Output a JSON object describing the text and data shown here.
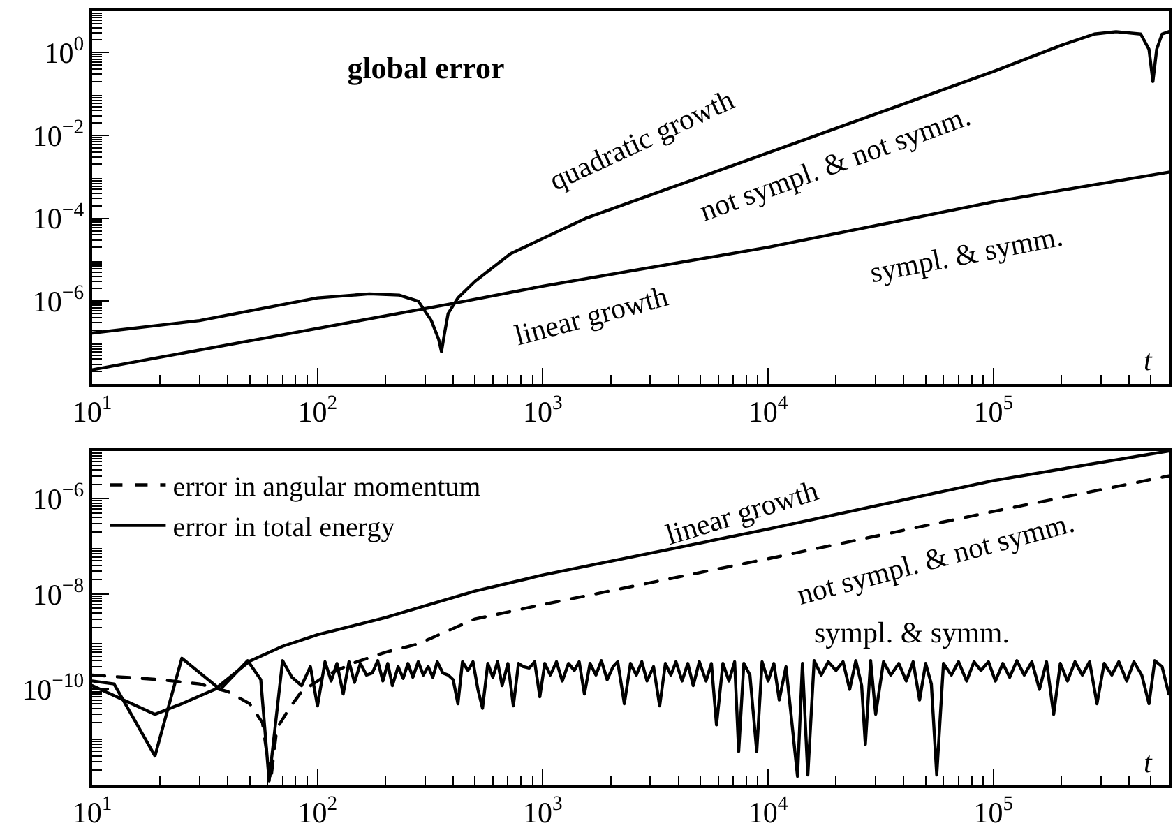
{
  "chart_data": [
    {
      "type": "line",
      "title": "global error",
      "xlabel": "t",
      "log": "xy",
      "grid": false,
      "marker": "none",
      "xlim": [
        10,
        600000
      ],
      "ylim": [
        1e-08,
        10
      ],
      "xticks": [
        {
          "value": 10,
          "label": "10$^{1}$"
        },
        {
          "value": 100,
          "label": "10$^{2}$"
        },
        {
          "value": 1000,
          "label": "10$^{3}$"
        },
        {
          "value": 10000,
          "label": "10$^{4}$"
        },
        {
          "value": 100000,
          "label": "10$^{5}$"
        }
      ],
      "yticks": [
        {
          "value": 1,
          "label": "10$^{0}$"
        },
        {
          "value": 0.01,
          "label": "10$^{−2}$"
        },
        {
          "value": 0.0001,
          "label": "10$^{−4}$"
        },
        {
          "value": 1e-06,
          "label": "10$^{−6}$"
        }
      ],
      "series": [
        {
          "color": "#000000",
          "line_style": "solid",
          "x": [
            10,
            30,
            100,
            170,
            230,
            280,
            320,
            345,
            355,
            365,
            380,
            420,
            500,
            720,
            1550,
            10000,
            100000,
            200000,
            280000,
            350000,
            450000,
            490000,
            510000,
            530000,
            560000,
            600000
          ],
          "values": [
            1.7e-07,
            3.4e-07,
            1.2e-06,
            1.5e-06,
            1.4e-06,
            1e-06,
            3.4e-07,
            1.2e-07,
            6e-08,
            1.5e-07,
            5e-07,
            1.2e-06,
            3e-06,
            1.4e-05,
            0.0001,
            0.0038,
            0.35,
            1.5,
            2.8,
            3.2,
            2.8,
            1.2,
            0.2,
            1.2,
            2.8,
            3.2
          ]
        },
        {
          "color": "#000000",
          "line_style": "solid",
          "x": [
            10,
            100,
            400,
            1000,
            10000,
            100000,
            600000
          ],
          "values": [
            2.2e-08,
            2.2e-07,
            8.8e-07,
            2.3e-06,
            2e-05,
            0.00025,
            0.0013
          ]
        }
      ],
      "annotations": [
        "quadratic growth",
        "not sympl. & not symm.",
        "linear growth",
        "sympl. & symm."
      ]
    },
    {
      "type": "line",
      "xlabel": "t",
      "log": "xy",
      "grid": false,
      "marker": "none",
      "legend": "top left",
      "xlim": [
        10,
        600000
      ],
      "ylim": [
        1e-12,
        1e-05
      ],
      "xticks": [
        {
          "value": 10,
          "label": "10$^{1}$"
        },
        {
          "value": 100,
          "label": "10$^{2}$"
        },
        {
          "value": 1000,
          "label": "10$^{3}$"
        },
        {
          "value": 10000,
          "label": "10$^{4}$"
        },
        {
          "value": 100000,
          "label": "10$^{5}$"
        }
      ],
      "yticks": [
        {
          "value": 1e-06,
          "label": "10$^{−6}$"
        },
        {
          "value": 1e-08,
          "label": "10$^{−8}$"
        },
        {
          "value": 1e-10,
          "label": "10$^{−10}$"
        }
      ],
      "series": [
        {
          "name": "error in angular momentum",
          "color": "#000000",
          "line_style": "dashed",
          "x": [
            10,
            20,
            30,
            40,
            50,
            57,
            62,
            66,
            75,
            85,
            110,
            145,
            200,
            280,
            500,
            1000,
            10000,
            100000,
            600000
          ],
          "values": [
            2e-10,
            1.6e-10,
            1.3e-10,
            9e-11,
            5e-11,
            2e-11,
            1.2e-12,
            1.5e-11,
            4e-11,
            9e-11,
            2e-10,
            3.6e-10,
            6e-10,
            9e-10,
            3e-09,
            6e-09,
            5.5e-08,
            5.4e-07,
            3e-06
          ]
        },
        {
          "name": "error in total energy",
          "color": "#000000",
          "line_style": "solid",
          "x": [
            10,
            19,
            25,
            35,
            50,
            70,
            100,
            200,
            500,
            1000,
            10000,
            100000,
            600000
          ],
          "values": [
            1.2e-10,
            3e-11,
            5e-11,
            1e-10,
            3.9e-10,
            8e-10,
            1.4e-09,
            3.2e-09,
            1.15e-08,
            2.5e-08,
            2.3e-07,
            2.4e-06,
            1e-05
          ]
        },
        {
          "color": "#000000",
          "line_style": "solid",
          "x": [
            10,
            12.5,
            19,
            25,
            37,
            49,
            56,
            61,
            70,
            77,
            85,
            93,
            100,
            108,
            115,
            122,
            130,
            138,
            146,
            155,
            165,
            175,
            185,
            195,
            205,
            215,
            228,
            240,
            252,
            265,
            280,
            295,
            310,
            325,
            340,
            360,
            380,
            400,
            420,
            440,
            465,
            490,
            515,
            540,
            570,
            600,
            630,
            660,
            700,
            740,
            780,
            820,
            870,
            920,
            970,
            1020,
            1080,
            1150,
            1220,
            1300,
            1380,
            1450,
            1530,
            1620,
            1720,
            1820,
            1930,
            2050,
            2150,
            2300,
            2450,
            2600,
            2750,
            2900,
            3100,
            3300,
            3500,
            3700,
            3900,
            4150,
            4400,
            4650,
            4950,
            5300,
            5600,
            5900,
            6300,
            6700,
            7100,
            7400,
            7800,
            8300,
            8900,
            9400,
            10000,
            10600,
            11200,
            12000,
            13500,
            14200,
            15000,
            16000,
            17200,
            18500,
            20000,
            21500,
            23000,
            24500,
            26000,
            27000,
            28500,
            30000,
            32500,
            35000,
            38000,
            41000,
            44000,
            47000,
            50000,
            53000,
            56000,
            60000,
            65000,
            70000,
            76000,
            82000,
            88000,
            95000,
            102000,
            110000,
            118000,
            127000,
            137000,
            148000,
            160000,
            172000,
            185000,
            198000,
            213000,
            230000,
            248000,
            267000,
            288000,
            310000,
            335000,
            360000,
            390000,
            420000,
            455000,
            490000,
            520000,
            560000,
            600000
          ],
          "values": [
            1.5e-10,
            1.3e-10,
            4e-12,
            4.5e-10,
            1e-10,
            4e-10,
            1.6e-10,
            1.2e-12,
            4e-10,
            1.8e-10,
            1.2e-10,
            3e-10,
            4.5e-11,
            3.8e-10,
            1.5e-10,
            3.5e-10,
            8e-11,
            3.8e-10,
            1.4e-10,
            3.5e-10,
            2e-10,
            2.2e-10,
            4e-10,
            1.5e-10,
            3.5e-10,
            1.2e-10,
            3e-10,
            1.7e-10,
            3.5e-10,
            1.8e-10,
            3.8e-10,
            2e-10,
            3e-10,
            1.8e-10,
            3.8e-10,
            2.2e-10,
            2e-10,
            1.6e-10,
            5e-11,
            3.8e-10,
            2.5e-10,
            3.8e-10,
            1e-10,
            4e-11,
            3.5e-10,
            1.8e-10,
            3.8e-10,
            1.2e-10,
            3.5e-10,
            4.5e-11,
            3.5e-10,
            3e-10,
            2.8e-10,
            3.8e-10,
            7e-11,
            3.5e-10,
            2e-10,
            3.8e-10,
            1.5e-10,
            3.5e-10,
            2.5e-10,
            3.8e-10,
            8e-11,
            3.5e-10,
            2e-10,
            4e-10,
            1.6e-10,
            3e-10,
            3.8e-10,
            5e-11,
            3.5e-10,
            2e-10,
            3.8e-10,
            1.5e-10,
            3e-10,
            4.5e-11,
            3.5e-10,
            2e-10,
            3.8e-10,
            1.5e-10,
            3.5e-10,
            1.2e-10,
            3.8e-10,
            1.5e-10,
            3.5e-10,
            1.8e-11,
            3.5e-10,
            1.5e-10,
            3.8e-10,
            5e-12,
            3.5e-10,
            2e-10,
            5e-12,
            3.8e-10,
            1.5e-10,
            3.5e-10,
            6e-11,
            3e-10,
            1.5e-12,
            3.5e-10,
            1.6e-12,
            4e-10,
            2e-10,
            3.8e-10,
            2.5e-10,
            3.8e-10,
            1e-10,
            4e-10,
            1.2e-10,
            7e-12,
            4e-10,
            3e-11,
            3.8e-10,
            2e-10,
            3.5e-10,
            1.5e-10,
            3.8e-10,
            6e-11,
            3.5e-10,
            1.3e-10,
            1.6e-12,
            3.5e-10,
            2e-10,
            3.8e-10,
            1.5e-10,
            3.8e-10,
            2.5e-10,
            3.8e-10,
            1.5e-10,
            3.5e-10,
            1.8e-10,
            4e-10,
            2e-10,
            3.8e-10,
            1e-10,
            3.8e-10,
            3e-11,
            3.5e-10,
            1.5e-10,
            3.8e-10,
            2e-10,
            3.8e-10,
            5e-11,
            3.5e-10,
            2e-10,
            3.8e-10,
            1.5e-10,
            3.8e-10,
            2e-10,
            5e-11,
            4e-10,
            3e-10,
            8e-11
          ]
        }
      ],
      "annotations": [
        "linear growth",
        "not sympl. & not symm.",
        "sympl. & symm."
      ]
    }
  ]
}
